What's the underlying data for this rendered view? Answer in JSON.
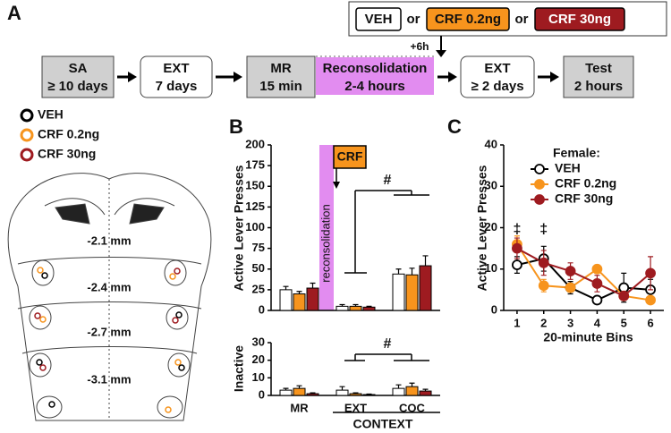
{
  "panel_labels": [
    "A",
    "B",
    "C"
  ],
  "timeline": {
    "treatments": [
      "VEH",
      "CRF 0.2ng",
      "CRF 30ng"
    ],
    "connectors": [
      "or",
      "or"
    ],
    "delay": "+6h",
    "steps": [
      {
        "label": "SA",
        "sub": "≥ 10 days"
      },
      {
        "label": "EXT",
        "sub": "7 days"
      },
      {
        "label": "MR",
        "sub": "15 min"
      },
      {
        "label": "Reconsolidation",
        "sub": "2-4 hours"
      },
      {
        "label": "EXT",
        "sub": "≥ 2 days"
      },
      {
        "label": "Test",
        "sub": "2 hours"
      }
    ]
  },
  "sections": [
    "-2.1 mm",
    "-2.4 mm",
    "-2.7 mm",
    "-3.1 mm"
  ],
  "chart_data": [
    {
      "type": "bar",
      "ylabel": "Active Lever Presses",
      "categories": [
        "MR",
        "EXT",
        "COC"
      ],
      "series": [
        {
          "name": "VEH",
          "color": "#ffffff",
          "values": [
            25,
            5,
            44
          ],
          "errors": [
            4,
            2,
            6
          ]
        },
        {
          "name": "CRF 0.2ng",
          "color": "#f7941d",
          "values": [
            20,
            5,
            43
          ],
          "errors": [
            3,
            2,
            8
          ]
        },
        {
          "name": "CRF 30ng",
          "color": "#9e1b20",
          "values": [
            27,
            4,
            54
          ],
          "errors": [
            6,
            1,
            12
          ]
        }
      ],
      "ylim": [
        0,
        200
      ],
      "yticks": [
        0,
        25,
        50,
        75,
        100,
        125,
        150,
        175,
        200
      ],
      "annotations": [
        "CRF",
        "reconsolidation",
        "#"
      ]
    },
    {
      "type": "bar",
      "ylabel": "Inactive",
      "xlabel": "CONTEXT",
      "categories": [
        "MR",
        "EXT",
        "COC"
      ],
      "series": [
        {
          "name": "VEH",
          "color": "#ffffff",
          "values": [
            3,
            3,
            4
          ],
          "errors": [
            1,
            2,
            2
          ]
        },
        {
          "name": "CRF 0.2ng",
          "color": "#f7941d",
          "values": [
            4,
            1,
            5
          ],
          "errors": [
            1.5,
            0.5,
            2
          ]
        },
        {
          "name": "CRF 30ng",
          "color": "#9e1b20",
          "values": [
            1,
            0.5,
            2.5
          ],
          "errors": [
            0.5,
            0.3,
            1
          ]
        }
      ],
      "ylim": [
        0,
        30
      ],
      "yticks": [
        0,
        10,
        20,
        30
      ],
      "annotations": [
        "#"
      ]
    },
    {
      "type": "line",
      "ylabel": "Active Lever Presses",
      "xlabel": "20-minute Bins",
      "legend_title": "Female:",
      "x": [
        1,
        2,
        3,
        4,
        5,
        6
      ],
      "series": [
        {
          "name": "VEH",
          "color": "#000000",
          "fill": "#ffffff",
          "values": [
            11,
            12.5,
            5.5,
            2.5,
            5.5,
            5
          ],
          "errors": [
            2,
            3,
            1.5,
            0.5,
            3.5,
            2.5
          ]
        },
        {
          "name": "CRF 0.2ng",
          "color": "#f7941d",
          "fill": "#f7941d",
          "values": [
            16,
            6,
            5.5,
            10,
            3.5,
            2.5
          ],
          "errors": [
            2,
            1.5,
            1,
            1,
            1,
            0.5
          ]
        },
        {
          "name": "CRF 30ng",
          "color": "#9e1b20",
          "fill": "#9e1b20",
          "values": [
            15,
            11.5,
            9.5,
            6.5,
            3.5,
            9
          ],
          "errors": [
            2.5,
            3,
            2,
            2,
            1,
            4
          ]
        }
      ],
      "xlim": [
        0.5,
        6.5
      ],
      "xticks": [
        1,
        2,
        3,
        4,
        5,
        6
      ],
      "ylim": [
        0,
        40
      ],
      "yticks": [
        0,
        10,
        20,
        30,
        40
      ],
      "annotations": [
        "‡",
        "‡"
      ]
    }
  ]
}
